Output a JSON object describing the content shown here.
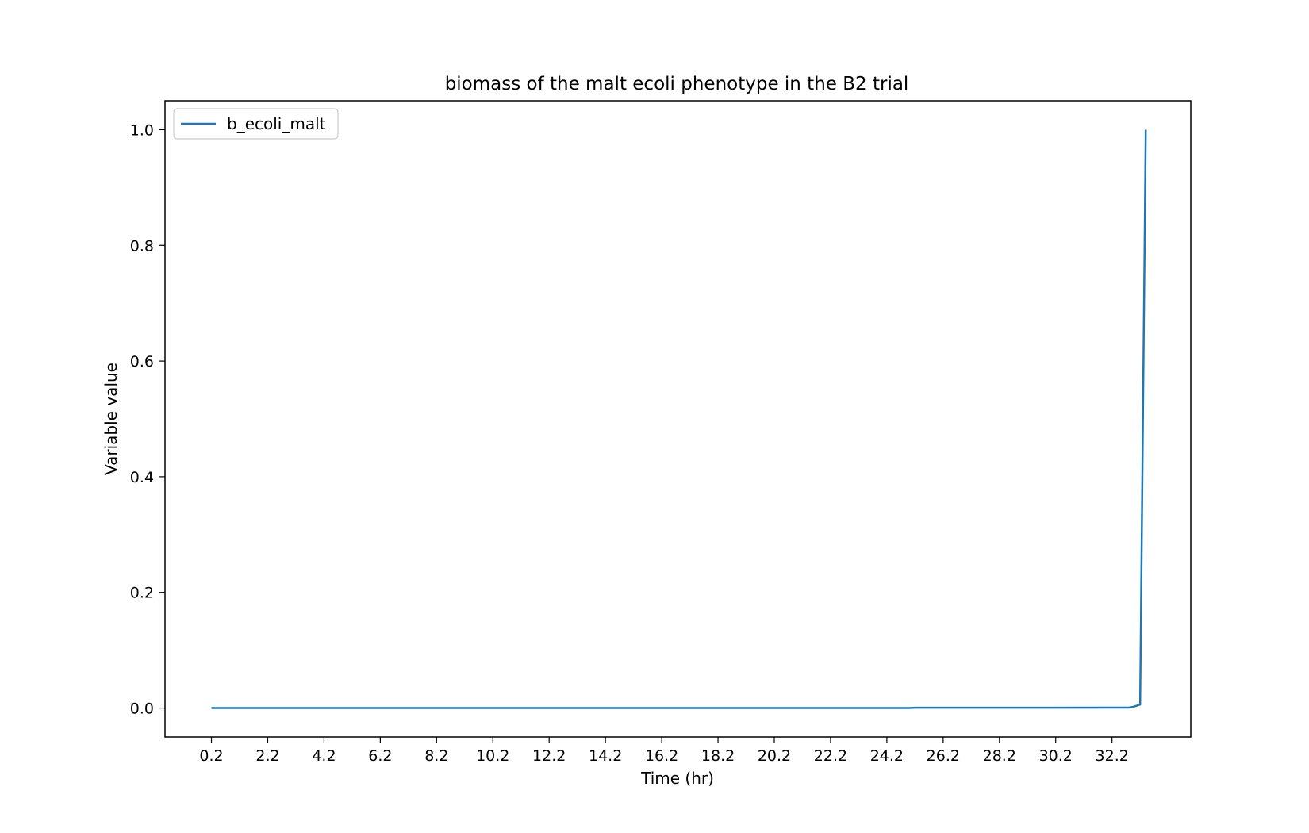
{
  "chart_data": {
    "type": "line",
    "title": "biomass of the malt ecoli phenotype in the B2 trial",
    "xlabel": "Time (hr)",
    "ylabel": "Variable value",
    "xlim": [
      -1.45,
      35.0
    ],
    "ylim": [
      -0.05,
      1.05
    ],
    "xticks": [
      0.2,
      2.2,
      4.2,
      6.2,
      8.2,
      10.2,
      12.2,
      14.2,
      16.2,
      18.2,
      20.2,
      22.2,
      24.2,
      26.2,
      28.2,
      30.2,
      32.2
    ],
    "xtick_labels": [
      "0.2",
      "2.2",
      "4.2",
      "6.2",
      "8.2",
      "10.2",
      "12.2",
      "14.2",
      "16.2",
      "18.2",
      "20.2",
      "22.2",
      "24.2",
      "26.2",
      "28.2",
      "30.2",
      "32.2"
    ],
    "yticks": [
      0.0,
      0.2,
      0.4,
      0.6,
      0.8,
      1.0
    ],
    "ytick_labels": [
      "0.0",
      "0.2",
      "0.4",
      "0.6",
      "0.8",
      "1.0"
    ],
    "grid": false,
    "legend_position": "top-left",
    "series": [
      {
        "name": "b_ecoli_malt",
        "color": "#1f77b4",
        "x": [
          0.2,
          5.0,
          10.0,
          15.0,
          20.0,
          25.0,
          25.2,
          30.0,
          32.8,
          32.95,
          33.2,
          33.4
        ],
        "y": [
          0.0,
          0.0,
          0.0,
          0.0,
          0.0,
          0.0,
          0.0005,
          0.0005,
          0.0008,
          0.002,
          0.006,
          1.0
        ]
      }
    ]
  }
}
